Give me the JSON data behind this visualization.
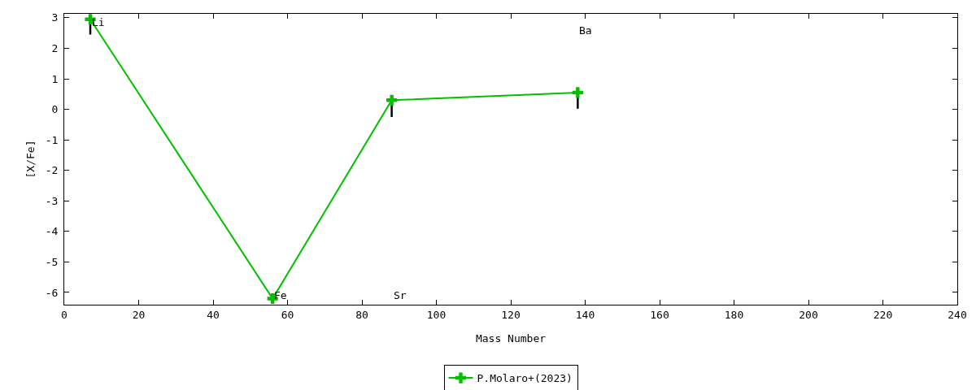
{
  "chart_data": {
    "type": "line",
    "xlabel": "Mass Number",
    "ylabel": "[X/Fe]",
    "x": [
      7,
      56,
      88,
      138
    ],
    "series": [
      {
        "name": "P.Molaro+(2023)",
        "color": "#00c000",
        "values": [
          2.95,
          -6.2,
          0.3,
          0.55
        ],
        "errors": [
          [
            2.45,
            2.95
          ],
          null,
          [
            -0.25,
            0.3
          ],
          [
            0.02,
            0.55
          ]
        ]
      }
    ],
    "annotations": [
      {
        "text": "Li",
        "x": 7,
        "y": 2.84
      },
      {
        "text": "Fe",
        "x": 56,
        "y": -6.1
      },
      "Sr",
      "Ba"
    ],
    "xlim": [
      0,
      240
    ],
    "xticks": [
      0,
      20,
      40,
      60,
      80,
      100,
      120,
      140,
      160,
      180,
      200,
      220,
      240
    ],
    "ylim": [
      -6.4,
      3.13
    ],
    "yticks": [
      -6,
      -5,
      -4,
      -3,
      -2,
      -1,
      0,
      1,
      2,
      3
    ],
    "marker": "cross",
    "grid": false,
    "legend": "bottom"
  }
}
